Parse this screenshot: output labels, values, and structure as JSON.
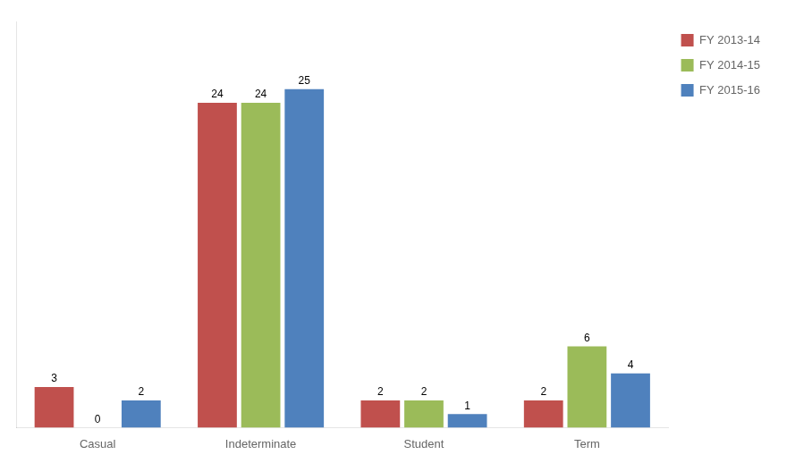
{
  "chart_data": {
    "type": "bar",
    "categories": [
      "Casual",
      "Indeterminate",
      "Student",
      "Term"
    ],
    "series": [
      {
        "name": "FY 2013-14",
        "color": "#C0504D",
        "values": [
          3,
          24,
          2,
          2
        ]
      },
      {
        "name": "FY 2014-15",
        "color": "#9BBB59",
        "values": [
          0,
          24,
          2,
          6
        ]
      },
      {
        "name": "FY 2015-16",
        "color": "#4F81BD",
        "values": [
          2,
          25,
          1,
          4
        ]
      }
    ],
    "ylim": [
      0,
      30
    ],
    "grid": false,
    "legend": "right",
    "data_labels": true,
    "tick_labels": "x"
  }
}
